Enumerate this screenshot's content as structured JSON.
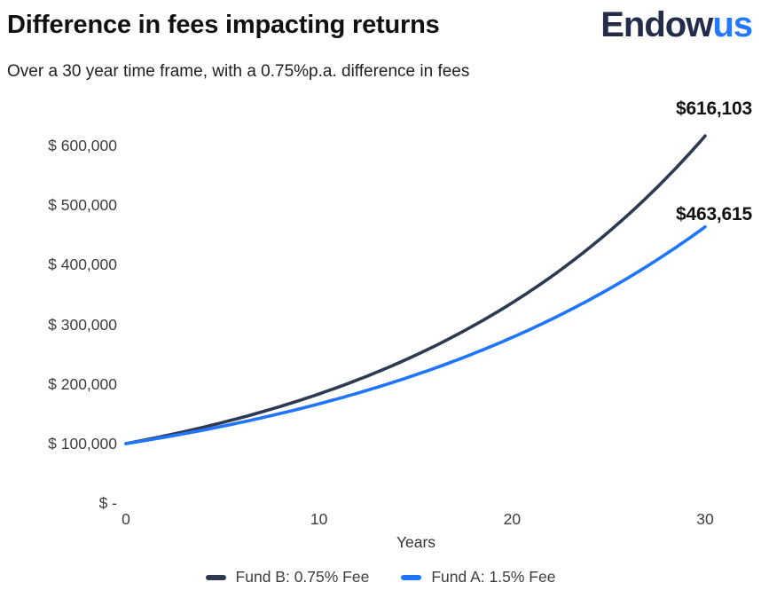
{
  "header": {
    "title": "Difference in fees impacting returns",
    "subtitle": "Over a 30 year time frame, with a 0.75%p.a. difference in fees",
    "logo": {
      "part1": "Endow",
      "part2": "us",
      "part1_color": "#232D49",
      "part2_color": "#2478FF"
    }
  },
  "chart_data": {
    "type": "line",
    "title": "Difference in fees impacting returns",
    "subtitle": "Over a 30 year time frame, with a 0.75%p.a. difference in fees",
    "xlabel": "Years",
    "ylabel": "",
    "grid": false,
    "legend_position": "bottom",
    "xlim": [
      0,
      30
    ],
    "ylim": [
      0,
      650000
    ],
    "x": [
      0,
      5,
      10,
      15,
      20,
      25,
      30
    ],
    "series": [
      {
        "name": "Fund B: 0.75% Fee",
        "color": "#2D3A52",
        "values": [
          100000,
          135400,
          183300,
          248200,
          336100,
          455100,
          616103
        ],
        "end_label": "$616,103"
      },
      {
        "name": "Fund A: 1.5% Fee",
        "color": "#1F75FD",
        "values": [
          100000,
          129100,
          166700,
          215300,
          278000,
          359000,
          463615
        ],
        "end_label": "$463,615"
      }
    ],
    "y_ticks": [
      {
        "value": 600000,
        "label": "$ 600,000"
      },
      {
        "value": 500000,
        "label": "$ 500,000"
      },
      {
        "value": 400000,
        "label": "$ 400,000"
      },
      {
        "value": 300000,
        "label": "$ 300,000"
      },
      {
        "value": 200000,
        "label": "$ 200,000"
      },
      {
        "value": 100000,
        "label": "$ 100,000"
      },
      {
        "value": 0,
        "label": "$ -"
      }
    ],
    "x_ticks": [
      {
        "value": 0,
        "label": "0"
      },
      {
        "value": 10,
        "label": "10"
      },
      {
        "value": 20,
        "label": "20"
      },
      {
        "value": 30,
        "label": "30"
      }
    ]
  }
}
